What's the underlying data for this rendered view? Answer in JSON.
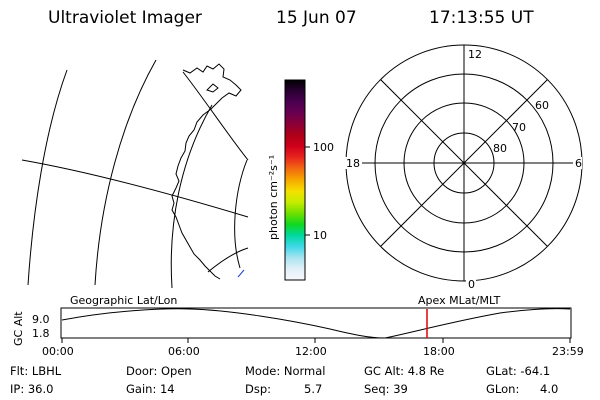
{
  "header": {
    "instrument": "Ultraviolet Imager",
    "date": "15 Jun 07",
    "time": "17:13:55 UT"
  },
  "colorbar": {
    "label": "photon cm⁻²s⁻¹",
    "ticks": [
      "100",
      "10"
    ],
    "colors": [
      "#000000",
      "#2a0033",
      "#4b0050",
      "#6a0050",
      "#8c0036",
      "#b00018",
      "#d0001a",
      "#e8281e",
      "#f26b10",
      "#f7a800",
      "#f5e000",
      "#c6ec00",
      "#70e000",
      "#10d820",
      "#00d8a0",
      "#40d8e8",
      "#a8e4f0",
      "#e2f0f8",
      "#f8f8fc"
    ]
  },
  "polar": {
    "mlt_labels": {
      "top": "12",
      "left": "18",
      "right": "6",
      "bottom": "0"
    },
    "lat_labels": [
      "60",
      "70",
      "80"
    ]
  },
  "timeline": {
    "left_title": "Geographic Lat/Lon",
    "right_title": "Apex MLat/MLT",
    "yaxis_label": "GC Alt",
    "ytick_top": "9.0",
    "ytick_bottom": "1.8",
    "xticks": [
      "00:00",
      "06:00",
      "12:00",
      "18:00",
      "23:59"
    ],
    "marker_color": "#e00000"
  },
  "info": {
    "row1": {
      "flt": "Flt: LBHL",
      "door": "Door: Open",
      "mode": "Mode: Normal",
      "gcalt": "GC Alt: 4.8 Re",
      "glat": "GLat: -64.1"
    },
    "row2": {
      "ip": "IP: 36.0",
      "gain": "Gain: 14",
      "dsp_label": "Dsp:",
      "dsp_value": "5.7",
      "seq": "Seq: 39",
      "glon_label": "GLon:",
      "glon_value": "4.0"
    }
  }
}
